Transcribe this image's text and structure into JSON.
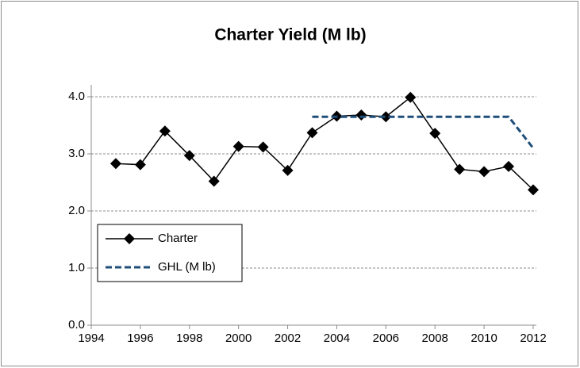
{
  "chart_data": {
    "type": "line",
    "title": "Charter Yield (M lb)",
    "x": [
      1995,
      1996,
      1997,
      1998,
      1999,
      2000,
      2001,
      2002,
      2003,
      2004,
      2005,
      2006,
      2007,
      2008,
      2009,
      2010,
      2011,
      2012
    ],
    "series": [
      {
        "name": "Charter",
        "color": "#000000",
        "marker": "diamond",
        "values": [
          2.83,
          2.81,
          3.4,
          2.97,
          2.52,
          3.13,
          3.12,
          2.71,
          3.37,
          3.66,
          3.68,
          3.65,
          3.99,
          3.36,
          2.73,
          2.69,
          2.78,
          2.37
        ]
      },
      {
        "name": "GHL (M lb)",
        "color": "#1f4e79",
        "dashed": true,
        "values": [
          null,
          null,
          null,
          null,
          null,
          null,
          null,
          null,
          3.65,
          3.65,
          3.65,
          3.65,
          3.65,
          3.65,
          3.65,
          3.65,
          3.65,
          3.1
        ]
      }
    ],
    "xlim": [
      1994,
      2012
    ],
    "xticks": [
      1994,
      1996,
      1998,
      2000,
      2002,
      2004,
      2006,
      2008,
      2010,
      2012
    ],
    "ylim": [
      0,
      4
    ],
    "yticks": [
      {
        "value": 0,
        "label": "0.0"
      },
      {
        "value": 1,
        "label": "1.0"
      },
      {
        "value": 2,
        "label": "2.0"
      },
      {
        "value": 3,
        "label": "3.0"
      },
      {
        "value": 4,
        "label": "4.0"
      }
    ],
    "grid": true,
    "legend": "lower-left"
  }
}
